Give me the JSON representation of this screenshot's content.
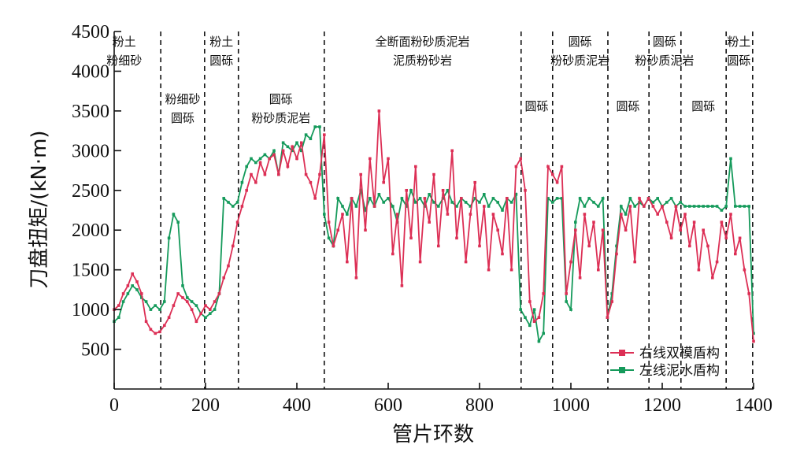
{
  "chart_data": {
    "type": "line",
    "title": "",
    "xlabel": "管片环数",
    "ylabel": "刀盘扭矩/(kN·m)",
    "xlim": [
      0,
      1400
    ],
    "ylim": [
      0,
      4500
    ],
    "xticks": [
      0,
      200,
      400,
      600,
      800,
      1000,
      1200,
      1400
    ],
    "yticks": [
      500,
      1000,
      1500,
      2000,
      2500,
      3000,
      3500,
      4000,
      4500
    ],
    "grid": false,
    "legend_position": "bottom-right",
    "boundaries": [
      102,
      198,
      272,
      460,
      891,
      960,
      1081,
      1171,
      1241,
      1340,
      1398
    ],
    "zones": [
      {
        "x": 22,
        "lines": [
          "粉土",
          "粉细砂"
        ],
        "row": "top"
      },
      {
        "x": 150,
        "lines": [
          "粉细砂",
          "圆砾"
        ],
        "row": "mid"
      },
      {
        "x": 235,
        "lines": [
          "粉土",
          "圆砾"
        ],
        "row": "top"
      },
      {
        "x": 365,
        "lines": [
          "圆砾",
          "粉砂质泥岩"
        ],
        "row": "mid"
      },
      {
        "x": 675,
        "lines": [
          "全断面粉砂质泥岩",
          "泥质粉砂岩"
        ],
        "row": "top"
      },
      {
        "x": 925,
        "lines": [
          "圆砾"
        ],
        "row": "low"
      },
      {
        "x": 1020,
        "lines": [
          "圆砾",
          "粉砂质泥岩"
        ],
        "row": "top"
      },
      {
        "x": 1125,
        "lines": [
          "圆砾"
        ],
        "row": "low"
      },
      {
        "x": 1205,
        "lines": [
          "圆砾",
          "粉砂质泥岩"
        ],
        "row": "top"
      },
      {
        "x": 1290,
        "lines": [
          "圆砾"
        ],
        "row": "low"
      },
      {
        "x": 1368,
        "lines": [
          "粉土",
          "圆砾"
        ],
        "row": "top"
      }
    ],
    "x_step": 10,
    "series": [
      {
        "name": "右线双模盾构",
        "color": "#dc2f55",
        "values": [
          1000,
          1050,
          1200,
          1300,
          1450,
          1350,
          1200,
          850,
          750,
          700,
          720,
          800,
          900,
          1050,
          1200,
          1150,
          1100,
          1000,
          850,
          950,
          1050,
          1000,
          1100,
          1200,
          1400,
          1550,
          1800,
          2100,
          2300,
          2500,
          2700,
          2600,
          2850,
          2700,
          2900,
          2950,
          2700,
          3000,
          2800,
          3050,
          2900,
          3100,
          2700,
          2600,
          2400,
          2700,
          3200,
          2100,
          1800,
          2000,
          2200,
          1600,
          2400,
          1400,
          2700,
          2000,
          2900,
          2300,
          3500,
          2600,
          2900,
          1700,
          2200,
          1300,
          2500,
          1900,
          2800,
          1600,
          2400,
          2100,
          2700,
          1800,
          2500,
          2200,
          3000,
          1900,
          2400,
          1600,
          2200,
          2600,
          1800,
          2300,
          1500,
          2200,
          2000,
          1700,
          2400,
          1500,
          2800,
          2900,
          2500,
          1100,
          850,
          900,
          1200,
          2800,
          2700,
          2600,
          2800,
          1200,
          1600,
          2000,
          1400,
          2200,
          1800,
          2100,
          1500,
          2000,
          900,
          1100,
          1700,
          2200,
          2000,
          2300,
          1600,
          2400,
          2300,
          2400,
          2300,
          2200,
          2300,
          2100,
          1900,
          2300,
          2000,
          2200,
          1800,
          2100,
          1500,
          2000,
          1800,
          1400,
          1600,
          2100,
          1900,
          2200,
          1700,
          1900,
          1500,
          1200,
          600
        ]
      },
      {
        "name": "左线泥水盾构",
        "color": "#159a5b",
        "values": [
          850,
          900,
          1100,
          1200,
          1300,
          1250,
          1150,
          1100,
          1000,
          1050,
          1000,
          1100,
          1900,
          2200,
          2100,
          1300,
          1150,
          1100,
          1050,
          950,
          900,
          950,
          1000,
          1200,
          2400,
          2350,
          2300,
          2350,
          2600,
          2800,
          2900,
          2850,
          2900,
          2950,
          2900,
          3000,
          2700,
          3100,
          3050,
          3000,
          3100,
          3000,
          3200,
          3150,
          3300,
          3300,
          2200,
          1900,
          1800,
          2400,
          2300,
          2200,
          2400,
          2300,
          2500,
          2250,
          2400,
          2300,
          2450,
          2350,
          2400,
          2300,
          2100,
          2400,
          2300,
          2500,
          2350,
          2400,
          2300,
          2450,
          2350,
          2300,
          2400,
          2500,
          2350,
          2300,
          2400,
          2350,
          2300,
          2400,
          2350,
          2450,
          2300,
          2400,
          2350,
          2250,
          2400,
          2350,
          2450,
          1000,
          900,
          800,
          1000,
          600,
          700,
          2400,
          2350,
          2400,
          2400,
          1100,
          1000,
          2100,
          2400,
          2300,
          2400,
          2350,
          2300,
          2400,
          900,
          1200,
          1800,
          2300,
          2200,
          2400,
          2300,
          2350,
          2300,
          2400,
          2350,
          2400,
          2300,
          2350,
          2400,
          2300,
          2350,
          2300,
          2300,
          2300,
          2300,
          2300,
          2300,
          2300,
          2300,
          2250,
          2300,
          2900,
          2300,
          2300,
          2300,
          2300,
          700
        ]
      }
    ]
  }
}
